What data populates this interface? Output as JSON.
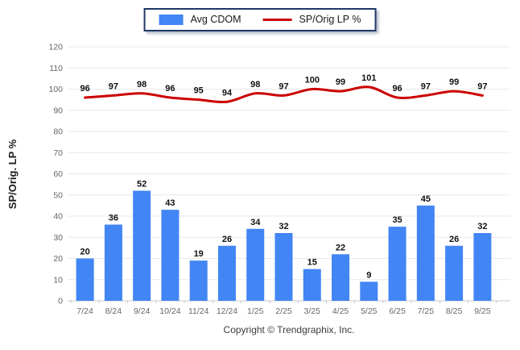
{
  "legend": {
    "bar_label": "Avg CDOM",
    "line_label": "SP/Orig LP %"
  },
  "footer": {
    "text": "Copyright © Trendgraphix, Inc."
  },
  "colors": {
    "bar": "#4285F4",
    "line": "#CC0000",
    "grid": "#E9E9E9",
    "baseline": "#C8C8C8",
    "axis_text": "#666666",
    "data_label": "#111111",
    "legend_border": "#1F3864"
  },
  "chart_data": {
    "type": "bar",
    "categories": [
      "7/24",
      "8/24",
      "9/24",
      "10/24",
      "11/24",
      "12/24",
      "1/25",
      "2/25",
      "3/25",
      "4/25",
      "5/25",
      "6/25",
      "7/25",
      "8/25",
      "9/25"
    ],
    "series": [
      {
        "name": "Avg CDOM",
        "type": "bar",
        "values": [
          20,
          36,
          52,
          43,
          19,
          26,
          34,
          32,
          15,
          22,
          9,
          35,
          45,
          26,
          32
        ]
      },
      {
        "name": "SP/Orig LP %",
        "type": "line",
        "values": [
          96,
          97,
          98,
          96,
          95,
          94,
          98,
          97,
          100,
          99,
          101,
          96,
          97,
          99,
          97
        ]
      }
    ],
    "title": "",
    "xlabel": "",
    "ylabel": "SP/Orig. LP %",
    "ylim": [
      0,
      120
    ],
    "ytick_step": 10,
    "grid": "horizontal",
    "legend_position": "top-center",
    "data_labels": true
  }
}
